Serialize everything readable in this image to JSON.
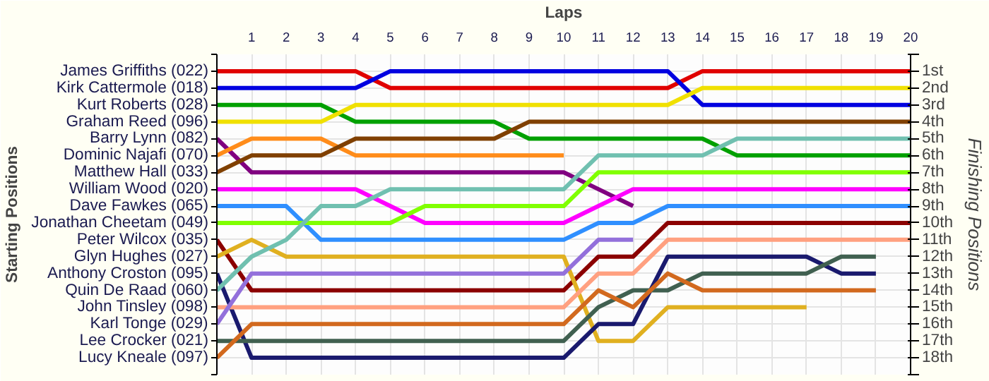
{
  "chart_data": {
    "type": "line",
    "xlabel": "Laps",
    "ylabel": "Finishing Positions",
    "annotations": [
      "Starting Positions"
    ],
    "x": [
      0,
      1,
      2,
      3,
      4,
      5,
      6,
      7,
      8,
      9,
      10,
      11,
      12,
      13,
      14,
      15,
      16,
      17,
      18,
      19,
      20
    ],
    "xlim": [
      0,
      20
    ],
    "xticks": [
      1,
      2,
      3,
      4,
      5,
      6,
      7,
      8,
      9,
      10,
      11,
      12,
      13,
      14,
      15,
      16,
      17,
      18,
      19,
      20
    ],
    "ylim": [
      19,
      0
    ],
    "yticks": [
      {
        "value": 0,
        "label": null
      },
      {
        "value": 1,
        "label": "1st"
      },
      {
        "value": 2,
        "label": "2nd"
      },
      {
        "value": 3,
        "label": "3rd"
      },
      {
        "value": 4,
        "label": "4th"
      },
      {
        "value": 5,
        "label": "5th"
      },
      {
        "value": 6,
        "label": "6th"
      },
      {
        "value": 7,
        "label": "7th"
      },
      {
        "value": 8,
        "label": "8th"
      },
      {
        "value": 9,
        "label": "9th"
      },
      {
        "value": 10,
        "label": "10th"
      },
      {
        "value": 11,
        "label": "11th"
      },
      {
        "value": 12,
        "label": "12th"
      },
      {
        "value": 13,
        "label": "13th"
      },
      {
        "value": 14,
        "label": "14th"
      },
      {
        "value": 15,
        "label": "15th"
      },
      {
        "value": 16,
        "label": "16th"
      },
      {
        "value": 17,
        "label": "17th"
      },
      {
        "value": 18,
        "label": "18th"
      },
      {
        "value": 19,
        "label": null
      }
    ],
    "grid": true,
    "series": [
      {
        "name": "James Griffiths (022)",
        "color": "#e00000",
        "values": [
          1,
          1,
          1,
          1,
          1,
          2,
          2,
          2,
          2,
          2,
          2,
          2,
          2,
          2,
          1,
          1,
          1,
          1,
          1,
          1,
          1
        ]
      },
      {
        "name": "Kirk Cattermole (018)",
        "color": "#0000e0",
        "values": [
          2,
          2,
          2,
          2,
          2,
          1,
          1,
          1,
          1,
          1,
          1,
          1,
          1,
          1,
          3,
          3,
          3,
          3,
          3,
          3,
          3
        ]
      },
      {
        "name": "Kurt Roberts (028)",
        "color": "#00a000",
        "values": [
          3,
          3,
          3,
          3,
          4,
          4,
          4,
          4,
          4,
          5,
          5,
          5,
          5,
          5,
          5,
          6,
          6,
          6,
          6,
          6,
          6
        ]
      },
      {
        "name": "Graham Reed (096)",
        "color": "#f0e000",
        "values": [
          4,
          4,
          4,
          4,
          3,
          3,
          3,
          3,
          3,
          3,
          3,
          3,
          3,
          3,
          2,
          2,
          2,
          2,
          2,
          2,
          2
        ]
      },
      {
        "name": "Barry Lynn (082)",
        "color": "#800080",
        "values": [
          5,
          7,
          7,
          7,
          7,
          7,
          7,
          7,
          7,
          7,
          7,
          8,
          9,
          null,
          null,
          null,
          null,
          null,
          null,
          null,
          null
        ]
      },
      {
        "name": "Dominic Najafi (070)",
        "color": "#ff8c1a",
        "values": [
          6,
          5,
          5,
          5,
          6,
          6,
          6,
          6,
          6,
          6,
          6,
          null,
          null,
          null,
          null,
          null,
          null,
          null,
          null,
          null,
          null
        ]
      },
      {
        "name": "Matthew Hall (033)",
        "color": "#804000",
        "values": [
          7,
          6,
          6,
          6,
          5,
          5,
          5,
          5,
          5,
          4,
          4,
          4,
          4,
          4,
          4,
          4,
          4,
          4,
          4,
          4,
          4
        ]
      },
      {
        "name": "William Wood (020)",
        "color": "#ff00ff",
        "values": [
          8,
          8,
          8,
          8,
          8,
          9,
          10,
          10,
          10,
          10,
          10,
          9,
          8,
          8,
          8,
          8,
          8,
          8,
          8,
          8,
          8
        ]
      },
      {
        "name": "Dave Fawkes (065)",
        "color": "#2f8fff",
        "values": [
          9,
          9,
          9,
          11,
          11,
          11,
          11,
          11,
          11,
          11,
          11,
          10,
          10,
          9,
          9,
          9,
          9,
          9,
          9,
          9,
          9
        ]
      },
      {
        "name": "Jonathan Cheetam (049)",
        "color": "#80ff00",
        "values": [
          10,
          10,
          10,
          10,
          10,
          10,
          9,
          9,
          9,
          9,
          9,
          7,
          7,
          7,
          7,
          7,
          7,
          7,
          7,
          7,
          7
        ]
      },
      {
        "name": "Peter Wilcox (035)",
        "color": "#8b0000",
        "values": [
          11,
          14,
          14,
          14,
          14,
          14,
          14,
          14,
          14,
          14,
          14,
          12,
          12,
          10,
          10,
          10,
          10,
          10,
          10,
          10,
          10
        ]
      },
      {
        "name": "Glyn Hughes (027)",
        "color": "#e0b020",
        "values": [
          12,
          11,
          12,
          12,
          12,
          12,
          12,
          12,
          12,
          12,
          12,
          17,
          17,
          15,
          15,
          15,
          15,
          15,
          null,
          null,
          null
        ]
      },
      {
        "name": "Anthony Croston (095)",
        "color": "#1a1a6e",
        "values": [
          13,
          18,
          18,
          18,
          18,
          18,
          18,
          18,
          18,
          18,
          18,
          16,
          16,
          12,
          12,
          12,
          12,
          12,
          13,
          13,
          null
        ]
      },
      {
        "name": "Quin De Raad (060)",
        "color": "#70c0b0",
        "values": [
          14,
          12,
          11,
          9,
          9,
          8,
          8,
          8,
          8,
          8,
          8,
          6,
          6,
          6,
          6,
          5,
          5,
          5,
          5,
          5,
          5
        ]
      },
      {
        "name": "John Tinsley (098)",
        "color": "#ffa080",
        "values": [
          15,
          15,
          15,
          15,
          15,
          15,
          15,
          15,
          15,
          15,
          15,
          13,
          13,
          11,
          11,
          11,
          11,
          11,
          11,
          11,
          11
        ]
      },
      {
        "name": "Karl Tonge (029)",
        "color": "#9370db",
        "values": [
          16,
          13,
          13,
          13,
          13,
          13,
          13,
          13,
          13,
          13,
          13,
          11,
          11,
          null,
          null,
          null,
          null,
          null,
          null,
          null,
          null
        ]
      },
      {
        "name": "Lee Crocker (021)",
        "color": "#406050",
        "values": [
          17,
          17,
          17,
          17,
          17,
          17,
          17,
          17,
          17,
          17,
          17,
          15,
          14,
          14,
          13,
          13,
          13,
          13,
          12,
          12,
          null
        ]
      },
      {
        "name": "Lucy Kneale (097)",
        "color": "#d2691e",
        "values": [
          18,
          16,
          16,
          16,
          16,
          16,
          16,
          16,
          16,
          16,
          16,
          14,
          15,
          13,
          14,
          14,
          14,
          14,
          14,
          14,
          null
        ]
      }
    ]
  }
}
